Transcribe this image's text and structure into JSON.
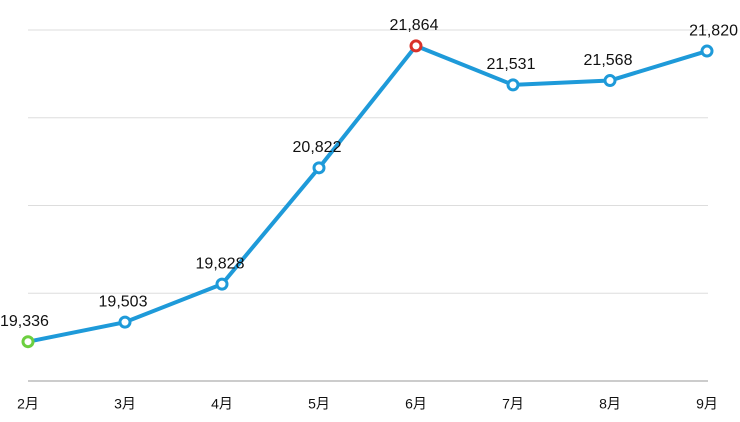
{
  "chart_data": {
    "type": "line",
    "categories": [
      "2月",
      "3月",
      "4月",
      "5月",
      "6月",
      "7月",
      "8月",
      "9月"
    ],
    "values": [
      19336,
      19503,
      19828,
      20822,
      21864,
      21531,
      21568,
      21820
    ],
    "value_labels": [
      "19,336",
      "19,503",
      "19,828",
      "20,822",
      "21,864",
      "21,531",
      "21,568",
      "21,820"
    ],
    "color": "#1e9ad9",
    "marker_colors": [
      "#6ccf3f",
      "#1e9ad9",
      "#1e9ad9",
      "#1e9ad9",
      "#d9322a",
      "#1e9ad9",
      "#1e9ad9",
      "#1e9ad9"
    ],
    "ylim": [
      19000,
      22000
    ],
    "yticks": [
      19000,
      19750,
      20500,
      21250,
      22000
    ],
    "grid": true
  }
}
